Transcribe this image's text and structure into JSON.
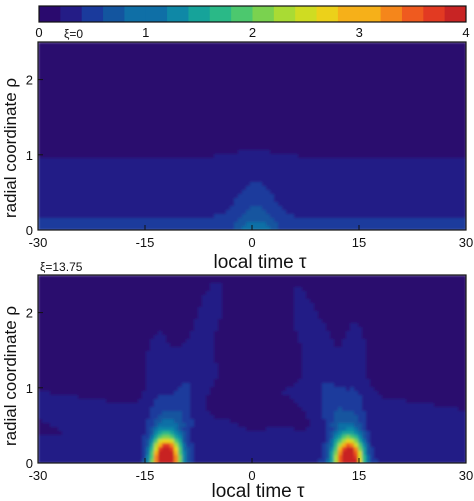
{
  "chart_data": {
    "type": "heatmap",
    "colorbar": {
      "ticks": [
        "0",
        "1",
        "2",
        "3",
        "4"
      ],
      "range": [
        0,
        4
      ],
      "levels": 20,
      "colors": [
        "#2a0a6e",
        "#241c86",
        "#1a3a9c",
        "#13559f",
        "#0f6fa6",
        "#0f88a6",
        "#16a39a",
        "#2ab987",
        "#4cc86e",
        "#7ad24f",
        "#a9db34",
        "#cfdc22",
        "#ecd11a",
        "#f6b019",
        "#f5861b",
        "#ef5a1f",
        "#e23a22",
        "#c82424"
      ]
    },
    "panels": [
      {
        "label": "ξ=0",
        "xlabel": "local time τ",
        "ylabel": "radial coordinate ρ",
        "xlim": [
          -30,
          30
        ],
        "ylim": [
          0,
          2.5
        ],
        "xticks": [
          "-30",
          "-15",
          "0",
          "15",
          "30"
        ],
        "yticks": [
          "0",
          "1",
          "2"
        ],
        "features": [
          {
            "kind": "spot",
            "tau": 0.5,
            "rho": 0.2,
            "peak": 1.05
          }
        ]
      },
      {
        "label": "ξ=13.75",
        "xlabel": "local time τ",
        "ylabel": "radial coordinate ρ",
        "xlim": [
          -30,
          30
        ],
        "ylim": [
          0,
          2.5
        ],
        "xticks": [
          "-30",
          "-15",
          "0",
          "15",
          "30"
        ],
        "yticks": [
          "0",
          "1",
          "2"
        ],
        "features": [
          {
            "kind": "spot",
            "tau": -12,
            "rho": 0.1,
            "peak": 4.0
          },
          {
            "kind": "spot",
            "tau": 13.5,
            "rho": 0.1,
            "peak": 3.6
          }
        ]
      }
    ]
  }
}
